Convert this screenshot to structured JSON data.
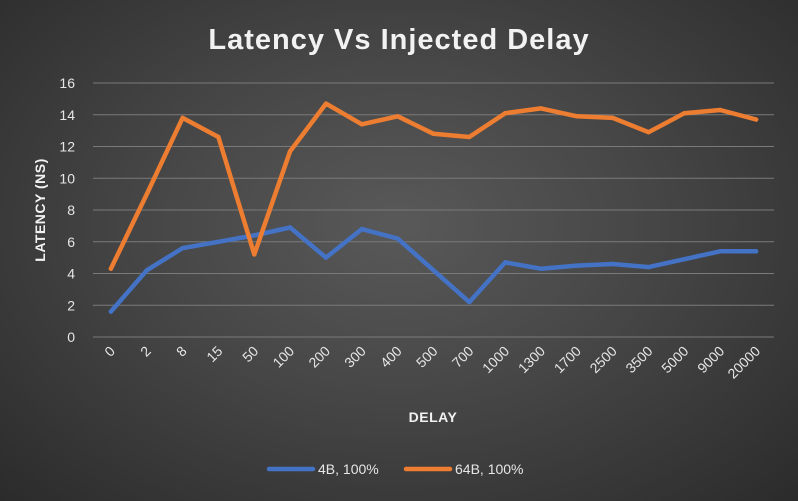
{
  "chart_data": {
    "type": "line",
    "title": "Latency Vs Injected Delay",
    "xlabel": "DELAY",
    "ylabel": "LATENCY (NS)",
    "categories": [
      "0",
      "2",
      "8",
      "15",
      "50",
      "100",
      "200",
      "300",
      "400",
      "500",
      "700",
      "1000",
      "1300",
      "1700",
      "2500",
      "3500",
      "5000",
      "9000",
      "20000"
    ],
    "ylim": [
      0,
      16
    ],
    "yticks": [
      "0",
      "2",
      "4",
      "6",
      "8",
      "10",
      "12",
      "14",
      "16"
    ],
    "grid": true,
    "legend_position": "bottom",
    "series": [
      {
        "name": "4B, 100%",
        "color": "#4472c4",
        "values": [
          1.6,
          4.2,
          5.6,
          6.0,
          6.4,
          6.9,
          5.0,
          6.8,
          6.2,
          4.2,
          2.2,
          4.7,
          4.3,
          4.5,
          4.6,
          4.4,
          4.9,
          5.4,
          5.4
        ]
      },
      {
        "name": "64B, 100%",
        "color": "#ed7d31",
        "values": [
          4.3,
          9.0,
          13.8,
          12.6,
          5.2,
          11.7,
          14.7,
          13.4,
          13.9,
          12.8,
          12.6,
          14.1,
          14.4,
          13.9,
          13.8,
          12.9,
          14.1,
          14.3,
          13.7
        ]
      }
    ]
  }
}
